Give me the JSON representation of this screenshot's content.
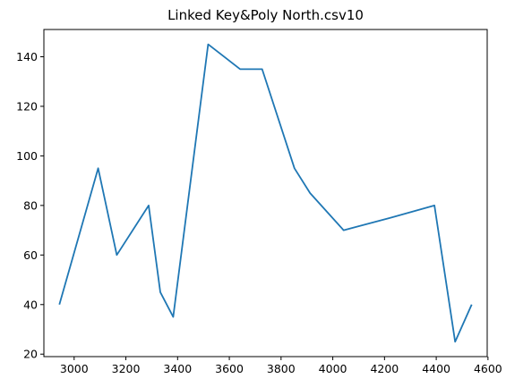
{
  "chart_data": {
    "type": "line",
    "title": "Linked Key&Poly North.csv10",
    "xlabel": "",
    "ylabel": "",
    "xlim": [
      2883,
      4597
    ],
    "ylim": [
      19,
      151
    ],
    "xticks": [
      3000,
      3200,
      3400,
      3600,
      3800,
      4000,
      4200,
      4400,
      4600
    ],
    "yticks": [
      20,
      40,
      60,
      80,
      100,
      120,
      140
    ],
    "grid": false,
    "series": [
      {
        "color": "#1f77b4",
        "x": [
          2943,
          3093,
          3165,
          3288,
          3333,
          3383,
          3518,
          3642,
          3727,
          3852,
          3912,
          4042,
          4222,
          4393,
          4473,
          4537
        ],
        "y": [
          40,
          95,
          60,
          80,
          45,
          35,
          145,
          135,
          135,
          95,
          85,
          70,
          75,
          80,
          25,
          40
        ]
      }
    ]
  }
}
